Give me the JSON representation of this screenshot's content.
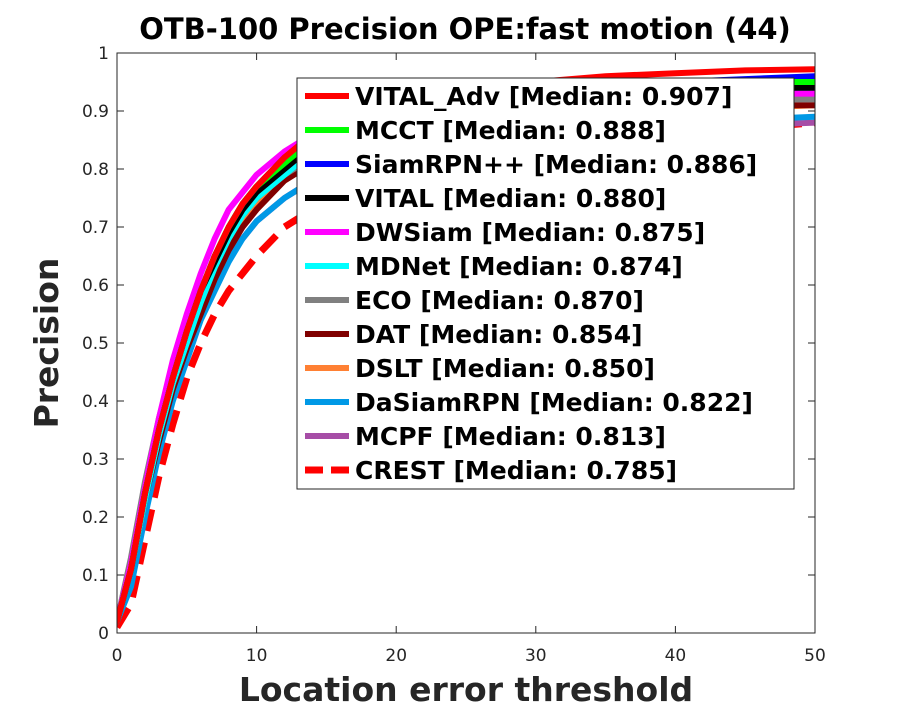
{
  "chart_data": {
    "type": "line",
    "title": "OTB-100 Precision OPE:fast motion (44)",
    "xlabel": "Location error threshold",
    "ylabel": "Precision",
    "xlim": [
      0,
      50
    ],
    "ylim": [
      0,
      1
    ],
    "xticks": [
      0,
      10,
      20,
      30,
      40,
      50
    ],
    "yticks": [
      0,
      0.1,
      0.2,
      0.3,
      0.4,
      0.5,
      0.6,
      0.7,
      0.8,
      0.9,
      1
    ],
    "xtick_labels": [
      "0",
      "10",
      "20",
      "30",
      "40",
      "50"
    ],
    "ytick_labels": [
      "0",
      "0.1",
      "0.2",
      "0.3",
      "0.4",
      "0.5",
      "0.6",
      "0.7",
      "0.8",
      "0.9",
      "1"
    ],
    "grid": false,
    "legend_position": "top-right",
    "x": [
      0,
      1,
      2,
      3,
      4,
      5,
      6,
      7,
      8,
      9,
      10,
      12,
      14,
      16,
      18,
      20,
      25,
      30,
      35,
      40,
      45,
      50
    ],
    "series": [
      {
        "name": "VITAL_Adv [Median: 0.907]",
        "color": "#ff0000",
        "dash": "solid",
        "values": [
          0.02,
          0.11,
          0.24,
          0.35,
          0.44,
          0.52,
          0.59,
          0.65,
          0.7,
          0.74,
          0.77,
          0.82,
          0.86,
          0.89,
          0.91,
          0.92,
          0.94,
          0.95,
          0.96,
          0.965,
          0.97,
          0.972
        ]
      },
      {
        "name": "MCCT [Median: 0.888]",
        "color": "#00ff00",
        "dash": "solid",
        "values": [
          0.02,
          0.11,
          0.24,
          0.35,
          0.44,
          0.52,
          0.59,
          0.65,
          0.7,
          0.74,
          0.77,
          0.81,
          0.85,
          0.87,
          0.89,
          0.9,
          0.92,
          0.93,
          0.94,
          0.945,
          0.95,
          0.95
        ]
      },
      {
        "name": "SiamRPN++ [Median: 0.886]",
        "color": "#0000ff",
        "dash": "solid",
        "values": [
          0.02,
          0.11,
          0.24,
          0.35,
          0.44,
          0.52,
          0.59,
          0.65,
          0.7,
          0.74,
          0.77,
          0.82,
          0.85,
          0.87,
          0.89,
          0.9,
          0.92,
          0.93,
          0.94,
          0.95,
          0.955,
          0.96
        ]
      },
      {
        "name": "VITAL [Median: 0.880]",
        "color": "#000000",
        "dash": "solid",
        "values": [
          0.02,
          0.11,
          0.24,
          0.35,
          0.44,
          0.52,
          0.59,
          0.64,
          0.69,
          0.73,
          0.76,
          0.8,
          0.84,
          0.86,
          0.88,
          0.89,
          0.91,
          0.92,
          0.93,
          0.935,
          0.94,
          0.94
        ]
      },
      {
        "name": "DWSiam [Median: 0.875]",
        "color": "#ff00ff",
        "dash": "solid",
        "values": [
          0.02,
          0.12,
          0.25,
          0.37,
          0.47,
          0.55,
          0.62,
          0.68,
          0.73,
          0.76,
          0.79,
          0.83,
          0.86,
          0.87,
          0.88,
          0.89,
          0.9,
          0.91,
          0.92,
          0.925,
          0.93,
          0.93
        ]
      },
      {
        "name": "MDNet [Median: 0.874]",
        "color": "#00ffff",
        "dash": "solid",
        "values": [
          0.02,
          0.11,
          0.23,
          0.34,
          0.43,
          0.5,
          0.57,
          0.63,
          0.68,
          0.72,
          0.75,
          0.79,
          0.83,
          0.85,
          0.87,
          0.88,
          0.9,
          0.91,
          0.92,
          0.93,
          0.935,
          0.94
        ]
      },
      {
        "name": "ECO [Median: 0.870]",
        "color": "#808080",
        "dash": "solid",
        "values": [
          0.02,
          0.13,
          0.26,
          0.37,
          0.46,
          0.53,
          0.59,
          0.64,
          0.69,
          0.72,
          0.75,
          0.79,
          0.82,
          0.84,
          0.86,
          0.87,
          0.89,
          0.9,
          0.91,
          0.915,
          0.92,
          0.92
        ]
      },
      {
        "name": "DAT [Median: 0.854]",
        "color": "#800000",
        "dash": "solid",
        "values": [
          0.02,
          0.11,
          0.23,
          0.33,
          0.42,
          0.49,
          0.55,
          0.61,
          0.66,
          0.7,
          0.73,
          0.78,
          0.81,
          0.83,
          0.85,
          0.86,
          0.88,
          0.89,
          0.9,
          0.905,
          0.91,
          0.91
        ]
      },
      {
        "name": "DSLT [Median: 0.850]",
        "color": "#ff8033",
        "dash": "solid",
        "values": [
          0.02,
          0.11,
          0.23,
          0.34,
          0.43,
          0.5,
          0.56,
          0.62,
          0.67,
          0.71,
          0.74,
          0.78,
          0.81,
          0.83,
          0.84,
          0.85,
          0.87,
          0.88,
          0.89,
          0.9,
          0.905,
          0.91
        ]
      },
      {
        "name": "DaSiamRPN [Median: 0.822]",
        "color": "#0099e6",
        "dash": "solid",
        "values": [
          0.02,
          0.08,
          0.2,
          0.31,
          0.4,
          0.47,
          0.54,
          0.59,
          0.64,
          0.68,
          0.71,
          0.75,
          0.78,
          0.8,
          0.81,
          0.82,
          0.84,
          0.86,
          0.87,
          0.88,
          0.885,
          0.89
        ]
      },
      {
        "name": "MCPF [Median: 0.813]",
        "color": "#a64da6",
        "dash": "solid",
        "values": [
          0.02,
          0.1,
          0.22,
          0.33,
          0.42,
          0.49,
          0.55,
          0.6,
          0.65,
          0.68,
          0.71,
          0.75,
          0.78,
          0.79,
          0.8,
          0.81,
          0.83,
          0.85,
          0.86,
          0.87,
          0.875,
          0.88
        ]
      },
      {
        "name": "CREST [Median: 0.785]",
        "color": "#ff0000",
        "dash": "dashed",
        "values": [
          0.01,
          0.05,
          0.16,
          0.27,
          0.36,
          0.44,
          0.5,
          0.55,
          0.59,
          0.62,
          0.65,
          0.7,
          0.73,
          0.75,
          0.77,
          0.78,
          0.81,
          0.83,
          0.85,
          0.86,
          0.87,
          0.88
        ]
      }
    ]
  }
}
